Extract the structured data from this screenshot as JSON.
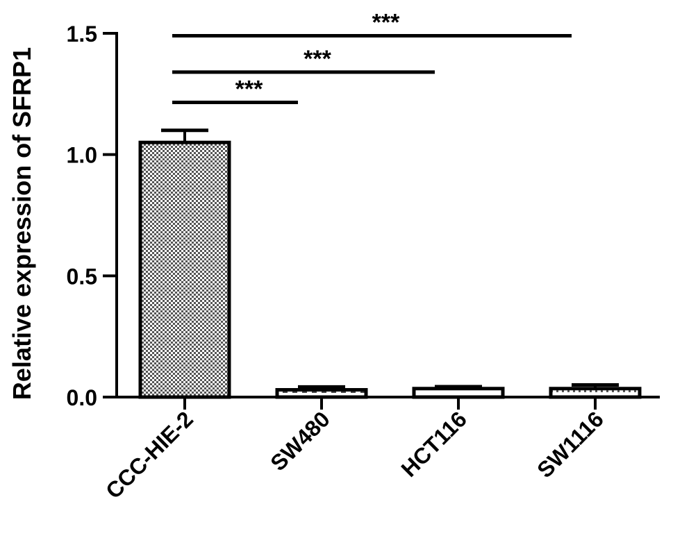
{
  "chart_data": {
    "type": "bar",
    "title": "",
    "xlabel": "",
    "ylabel": "Relative expression of SFRP1",
    "categories": [
      "CCC-HIE-2",
      "SW480",
      "HCT116",
      "SW1116"
    ],
    "values": [
      1.05,
      0.03,
      0.035,
      0.035
    ],
    "errors": [
      0.05,
      0.012,
      0.008,
      0.015
    ],
    "ylim": [
      0,
      1.5
    ],
    "yticks": [
      0.0,
      0.5,
      1.0,
      1.5
    ],
    "ytick_labels": [
      "0.0",
      "0.5",
      "1.0",
      "1.5"
    ],
    "grid": false,
    "legend": "none",
    "fill_patterns": [
      "dense-crosshatch",
      "dashed-stripe",
      "plain",
      "dotted-stripe"
    ],
    "significance": [
      {
        "from": "CCC-HIE-2",
        "to": "SW480",
        "label": "***",
        "y": 1.215
      },
      {
        "from": "CCC-HIE-2",
        "to": "HCT116",
        "label": "***",
        "y": 1.34
      },
      {
        "from": "CCC-HIE-2",
        "to": "SW1116",
        "label": "***",
        "y": 1.49
      }
    ],
    "colors": {
      "ink": "#000000",
      "background": "#ffffff",
      "pattern_dot": "#555555"
    }
  }
}
